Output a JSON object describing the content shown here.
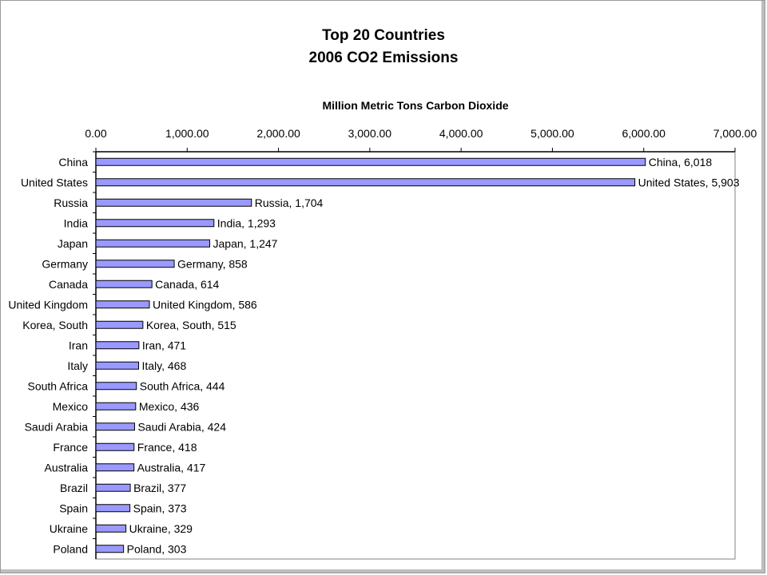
{
  "chart_data": {
    "type": "bar",
    "orientation": "horizontal",
    "title": "Top 20 Countries",
    "subtitle": "2006 CO2 Emissions",
    "xlabel": "Million Metric Tons Carbon Dioxide",
    "ylabel": "",
    "xlim": [
      0,
      7000
    ],
    "xticks": [
      "0.00",
      "1,000.00",
      "2,000.00",
      "3,000.00",
      "4,000.00",
      "5,000.00",
      "6,000.00",
      "7,000.00"
    ],
    "x_axis_position": "top",
    "grid": false,
    "bar_color": "#9999ff",
    "categories": [
      "China",
      "United States",
      "Russia",
      "India",
      "Japan",
      "Germany",
      "Canada",
      "United Kingdom",
      "Korea, South",
      "Iran",
      "Italy",
      "South Africa",
      "Mexico",
      "Saudi Arabia",
      "France",
      "Australia",
      "Brazil",
      "Spain",
      "Ukraine",
      "Poland"
    ],
    "values": [
      6018,
      5903,
      1704,
      1293,
      1247,
      858,
      614,
      586,
      515,
      471,
      468,
      444,
      436,
      424,
      418,
      417,
      377,
      373,
      329,
      303
    ],
    "data_labels": [
      "China, 6,018",
      "United States, 5,903",
      "Russia, 1,704",
      "India, 1,293",
      "Japan, 1,247",
      "Germany, 858",
      "Canada, 614",
      "United Kingdom, 586",
      "Korea, South, 515",
      "Iran, 471",
      "Italy, 468",
      "South Africa, 444",
      "Mexico, 436",
      "Saudi Arabia, 424",
      "France, 418",
      "Australia, 417",
      "Brazil, 377",
      "Spain, 373",
      "Ukraine, 329",
      "Poland, 303"
    ]
  }
}
